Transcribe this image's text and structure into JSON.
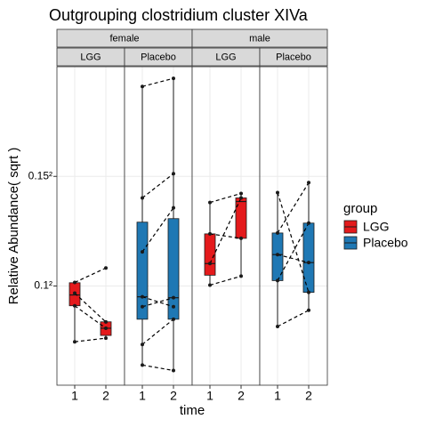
{
  "chart_data": {
    "type": "boxplot",
    "title": "Outgrouping clostridium cluster XIVa",
    "xlabel": "time",
    "ylabel": "Relative Abundance( sqrt )",
    "yscale": "sqrt",
    "ylim": [
      0.003,
      0.04
    ],
    "yticks": [
      {
        "value": 0.01,
        "label": "0.1²"
      },
      {
        "value": 0.0225,
        "label": "0.15²"
      }
    ],
    "grid": true,
    "categories": [
      "1",
      "2"
    ],
    "legend_title": "group",
    "legend_position": "right",
    "series": [
      {
        "name": "LGG",
        "color": "#e41a1c"
      },
      {
        "name": "Placebo",
        "color": "#1f78b4"
      }
    ],
    "facets": [
      {
        "label": "female",
        "panels": [
          {
            "label": "LGG",
            "boxes": [
              {
                "min": 0.00556,
                "q1": 0.00828,
                "median": 0.0092,
                "q3": 0.0103,
                "max": 0.0103
              },
              {
                "min": 0.00581,
                "q1": 0.006,
                "median": 0.00652,
                "q3": 0.007,
                "max": 0.007
              }
            ],
            "pairs": [
              [
                0.01033,
                0.01171
              ],
              [
                0.00936,
                0.00699
              ],
              [
                0.00828,
                0.00652
              ],
              [
                0.00556,
                0.00581
              ]
            ]
          },
          {
            "label": "Placebo",
            "boxes": [
              {
                "min": 0.00409,
                "q1": 0.0072,
                "median": 0.00904,
                "q3": 0.01667,
                "max": 0.03648
              },
              {
                "min": 0.00378,
                "q1": 0.0072,
                "median": 0.00896,
                "q3": 0.01709,
                "max": 0.0379
              }
            ],
            "pairs": [
              [
                0.03648,
                0.0379
              ],
              [
                0.01965,
                0.02287
              ],
              [
                0.01336,
                0.0184
              ],
              [
                0.00904,
                0.0082
              ],
              [
                0.0082,
                0.00896
              ],
              [
                0.00538,
                0.0072
              ],
              [
                0.00409,
                0.00378
              ]
            ]
          }
        ]
      },
      {
        "label": "male",
        "panels": [
          {
            "label": "LGG",
            "boxes": [
              {
                "min": 0.01008,
                "q1": 0.01101,
                "median": 0.01215,
                "q3": 0.01532,
                "max": 0.01907
              },
              {
                "min": 0.01092,
                "q1": 0.01482,
                "median": 0.01919,
                "q3": 0.01965,
                "max": 0.02022
              }
            ],
            "pairs": [
              [
                0.01907,
                0.02022
              ],
              [
                0.01215,
                0.01965
              ],
              [
                0.01532,
                0.01482
              ],
              [
                0.01008,
                0.01092
              ]
            ]
          },
          {
            "label": "Placebo",
            "boxes": [
              {
                "min": 0.00665,
                "q1": 0.0105,
                "median": 0.01307,
                "q3": 0.01542,
                "max": 0.02034
              },
              {
                "min": 0.00791,
                "q1": 0.00943,
                "median": 0.01225,
                "q3": 0.01656,
                "max": 0.02165
              }
            ],
            "pairs": [
              [
                0.02034,
                0.00943
              ],
              [
                0.01542,
                0.02165
              ],
              [
                0.01307,
                0.01225
              ],
              [
                0.0105,
                0.01656
              ],
              [
                0.00665,
                0.00791
              ]
            ]
          }
        ]
      }
    ]
  }
}
